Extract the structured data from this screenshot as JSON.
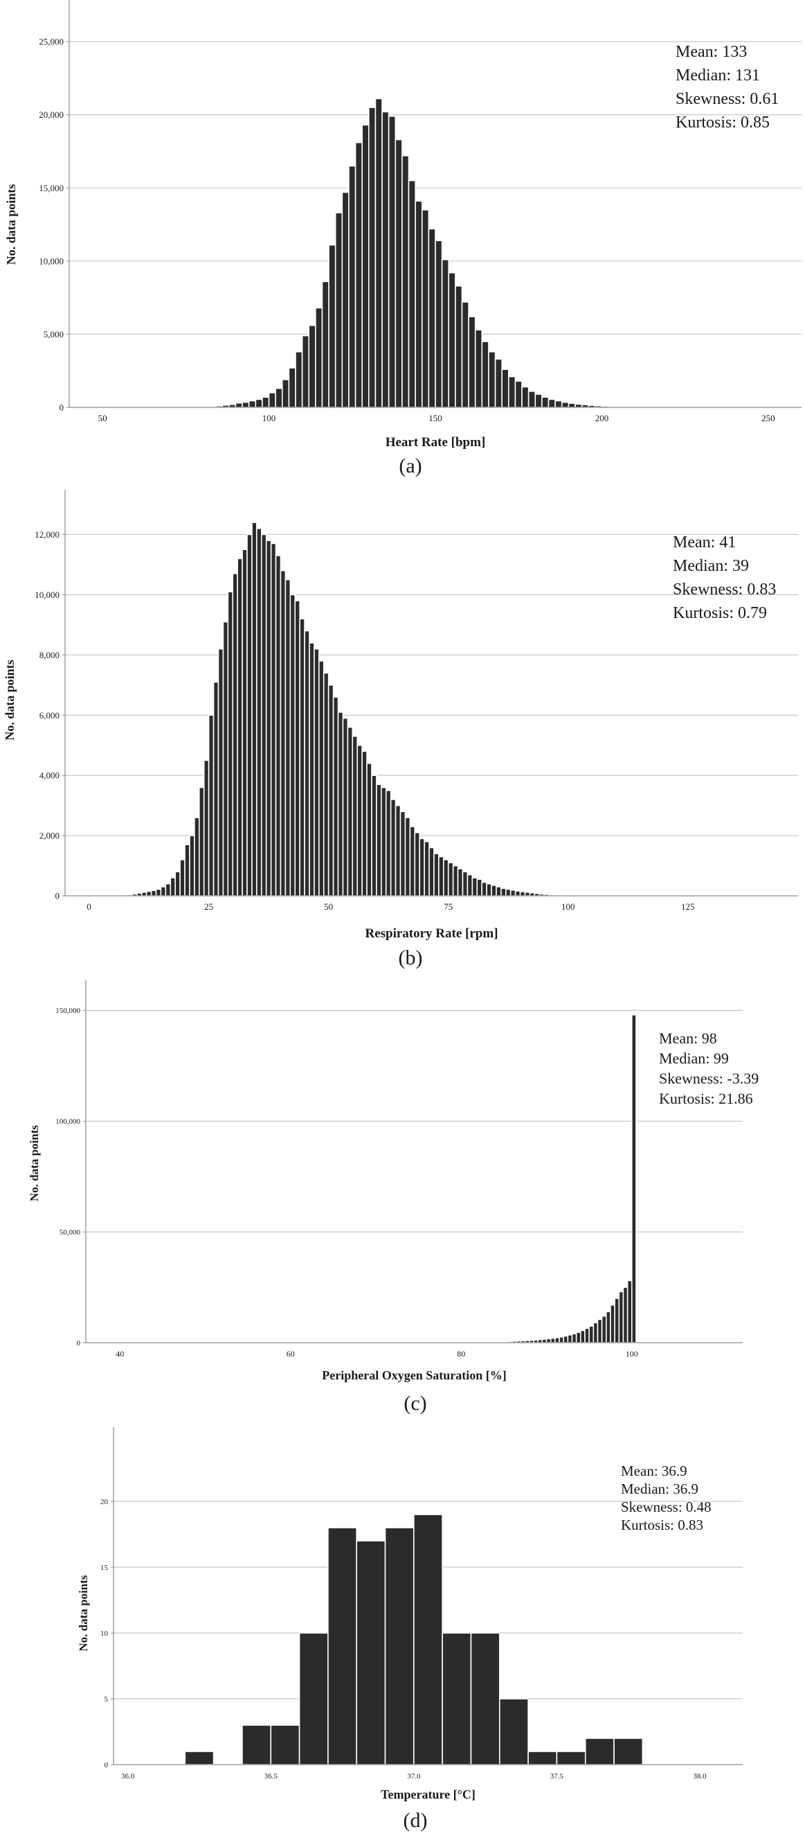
{
  "colors": {
    "bar": "#2b2b2b",
    "bar_edge": "#ffffff",
    "grid": "#c8c8c8",
    "axis": "#8a8a8a",
    "text": "#1a1a1a"
  },
  "chart_data": [
    {
      "type": "bar",
      "panel_label": "(a)",
      "xlabel": "Heart Rate [bpm]",
      "ylabel": "No. data points",
      "xlim": [
        40,
        260
      ],
      "ylim": [
        0,
        25000
      ],
      "xticks": [
        50,
        100,
        150,
        200,
        250
      ],
      "yticks": [
        0,
        5000,
        10000,
        15000,
        20000,
        25000
      ],
      "ytick_labels": [
        "0",
        "5,000",
        "10,000",
        "15,000",
        "20,000",
        "25,000"
      ],
      "grid": true,
      "stats": [
        "Mean: 133",
        "Median:  131",
        "Skewness: 0.61",
        "Kurtosis: 0.85"
      ],
      "bin_width": 2,
      "bins": [
        [
          80,
          50
        ],
        [
          82,
          70
        ],
        [
          84,
          100
        ],
        [
          86,
          150
        ],
        [
          88,
          200
        ],
        [
          90,
          300
        ],
        [
          92,
          350
        ],
        [
          94,
          450
        ],
        [
          96,
          550
        ],
        [
          98,
          700
        ],
        [
          100,
          1000
        ],
        [
          102,
          1300
        ],
        [
          104,
          1900
        ],
        [
          106,
          2700
        ],
        [
          108,
          3800
        ],
        [
          110,
          4900
        ],
        [
          112,
          5600
        ],
        [
          114,
          6800
        ],
        [
          116,
          8600
        ],
        [
          118,
          11100
        ],
        [
          120,
          13300
        ],
        [
          122,
          14700
        ],
        [
          124,
          16500
        ],
        [
          126,
          18100
        ],
        [
          128,
          19300
        ],
        [
          130,
          20500
        ],
        [
          132,
          21100
        ],
        [
          134,
          20200
        ],
        [
          136,
          19900
        ],
        [
          138,
          18300
        ],
        [
          140,
          17200
        ],
        [
          142,
          15500
        ],
        [
          144,
          14100
        ],
        [
          146,
          13500
        ],
        [
          148,
          12200
        ],
        [
          150,
          11400
        ],
        [
          152,
          10100
        ],
        [
          154,
          9200
        ],
        [
          156,
          8300
        ],
        [
          158,
          7200
        ],
        [
          160,
          6200
        ],
        [
          162,
          5300
        ],
        [
          164,
          4500
        ],
        [
          166,
          3800
        ],
        [
          168,
          3300
        ],
        [
          170,
          2600
        ],
        [
          172,
          2100
        ],
        [
          174,
          1800
        ],
        [
          176,
          1400
        ],
        [
          178,
          1100
        ],
        [
          180,
          900
        ],
        [
          182,
          700
        ],
        [
          184,
          550
        ],
        [
          186,
          450
        ],
        [
          188,
          350
        ],
        [
          190,
          280
        ],
        [
          192,
          220
        ],
        [
          194,
          180
        ],
        [
          196,
          140
        ],
        [
          198,
          110
        ],
        [
          200,
          90
        ],
        [
          202,
          70
        ],
        [
          204,
          50
        ],
        [
          206,
          40
        ],
        [
          208,
          30
        ],
        [
          210,
          25
        ],
        [
          212,
          20
        ],
        [
          214,
          15
        ],
        [
          216,
          12
        ],
        [
          218,
          10
        ]
      ]
    },
    {
      "type": "bar",
      "panel_label": "(b)",
      "xlabel": "Respiratory Rate [rpm]",
      "ylabel": "No. data points",
      "xlim": [
        -5,
        148
      ],
      "ylim": [
        0,
        13000
      ],
      "xticks": [
        0,
        25,
        50,
        75,
        100,
        125
      ],
      "yticks": [
        0,
        2000,
        4000,
        6000,
        8000,
        10000,
        12000
      ],
      "ytick_labels": [
        "0",
        "2,000",
        "4,000",
        "6,000",
        "8,000",
        "10,000",
        "12,000"
      ],
      "grid": true,
      "stats": [
        "Mean: 41",
        "Median: 39",
        "Skewness: 0.83",
        "Kurtosis: 0.79"
      ],
      "bin_width": 1,
      "bins": [
        [
          5,
          10
        ],
        [
          6,
          15
        ],
        [
          7,
          25
        ],
        [
          8,
          40
        ],
        [
          9,
          60
        ],
        [
          10,
          90
        ],
        [
          11,
          120
        ],
        [
          12,
          150
        ],
        [
          13,
          180
        ],
        [
          14,
          220
        ],
        [
          15,
          300
        ],
        [
          16,
          400
        ],
        [
          17,
          600
        ],
        [
          18,
          800
        ],
        [
          19,
          1200
        ],
        [
          20,
          1700
        ],
        [
          21,
          2000
        ],
        [
          22,
          2600
        ],
        [
          23,
          3600
        ],
        [
          24,
          4500
        ],
        [
          25,
          6000
        ],
        [
          26,
          7100
        ],
        [
          27,
          8200
        ],
        [
          28,
          9100
        ],
        [
          29,
          10100
        ],
        [
          30,
          10700
        ],
        [
          31,
          11200
        ],
        [
          32,
          11500
        ],
        [
          33,
          12000
        ],
        [
          34,
          12400
        ],
        [
          35,
          12200
        ],
        [
          36,
          12000
        ],
        [
          37,
          11800
        ],
        [
          38,
          11700
        ],
        [
          39,
          11300
        ],
        [
          40,
          10800
        ],
        [
          41,
          10500
        ],
        [
          42,
          10000
        ],
        [
          43,
          9800
        ],
        [
          44,
          9200
        ],
        [
          45,
          8800
        ],
        [
          46,
          8400
        ],
        [
          47,
          8200
        ],
        [
          48,
          7800
        ],
        [
          49,
          7400
        ],
        [
          50,
          7000
        ],
        [
          51,
          6600
        ],
        [
          52,
          6100
        ],
        [
          53,
          5900
        ],
        [
          54,
          5600
        ],
        [
          55,
          5300
        ],
        [
          56,
          5000
        ],
        [
          57,
          4800
        ],
        [
          58,
          4400
        ],
        [
          59,
          4000
        ],
        [
          60,
          3700
        ],
        [
          61,
          3600
        ],
        [
          62,
          3500
        ],
        [
          63,
          3200
        ],
        [
          64,
          3000
        ],
        [
          65,
          2800
        ],
        [
          66,
          2600
        ],
        [
          67,
          2300
        ],
        [
          68,
          2100
        ],
        [
          69,
          1900
        ],
        [
          70,
          1800
        ],
        [
          71,
          1600
        ],
        [
          72,
          1400
        ],
        [
          73,
          1300
        ],
        [
          74,
          1200
        ],
        [
          75,
          1100
        ],
        [
          76,
          1000
        ],
        [
          77,
          900
        ],
        [
          78,
          800
        ],
        [
          79,
          700
        ],
        [
          80,
          600
        ],
        [
          81,
          550
        ],
        [
          82,
          450
        ],
        [
          83,
          400
        ],
        [
          84,
          350
        ],
        [
          85,
          300
        ],
        [
          86,
          250
        ],
        [
          87,
          220
        ],
        [
          88,
          190
        ],
        [
          89,
          160
        ],
        [
          90,
          140
        ],
        [
          91,
          120
        ],
        [
          92,
          100
        ],
        [
          93,
          80
        ],
        [
          94,
          60
        ],
        [
          95,
          50
        ],
        [
          96,
          40
        ],
        [
          97,
          30
        ],
        [
          98,
          25
        ],
        [
          99,
          20
        ],
        [
          100,
          15
        ],
        [
          101,
          12
        ],
        [
          102,
          10
        ],
        [
          103,
          8
        ],
        [
          104,
          5
        ]
      ]
    },
    {
      "type": "bar",
      "panel_label": "(c)",
      "xlabel": "Peripheral Oxygen Saturation [%]",
      "ylabel": "No. data points",
      "xlim": [
        36,
        113
      ],
      "ylim": [
        0,
        162000
      ],
      "xticks": [
        40,
        60,
        80,
        100
      ],
      "yticks": [
        0,
        50000,
        100000,
        150000
      ],
      "ytick_labels": [
        "0",
        "50,000",
        "100,000",
        "150,000"
      ],
      "grid": true,
      "stats": [
        "Mean: 98",
        "Median:  99",
        "Skewness: -3.39",
        "Kurtosis: 21.86"
      ],
      "bin_width": 0.5,
      "bins": [
        [
          80,
          100
        ],
        [
          80.5,
          120
        ],
        [
          81,
          150
        ],
        [
          81.5,
          180
        ],
        [
          82,
          220
        ],
        [
          82.5,
          260
        ],
        [
          83,
          300
        ],
        [
          83.5,
          350
        ],
        [
          84,
          400
        ],
        [
          84.5,
          450
        ],
        [
          85,
          500
        ],
        [
          85.5,
          600
        ],
        [
          86,
          700
        ],
        [
          86.5,
          800
        ],
        [
          87,
          900
        ],
        [
          87.5,
          1000
        ],
        [
          88,
          1100
        ],
        [
          88.5,
          1200
        ],
        [
          89,
          1400
        ],
        [
          89.5,
          1600
        ],
        [
          90,
          1800
        ],
        [
          90.5,
          2000
        ],
        [
          91,
          2300
        ],
        [
          91.5,
          2600
        ],
        [
          92,
          3000
        ],
        [
          92.5,
          3500
        ],
        [
          93,
          4000
        ],
        [
          93.5,
          4700
        ],
        [
          94,
          5500
        ],
        [
          94.5,
          6500
        ],
        [
          95,
          7500
        ],
        [
          95.5,
          9000
        ],
        [
          96,
          10500
        ],
        [
          96.5,
          12000
        ],
        [
          97,
          14000
        ],
        [
          97.5,
          17000
        ],
        [
          98,
          20000
        ],
        [
          98.5,
          23000
        ],
        [
          99,
          25000
        ],
        [
          99.5,
          28000
        ],
        [
          100,
          148000
        ]
      ]
    },
    {
      "type": "bar",
      "panel_label": "(d)",
      "xlabel": "Temperature [°C]",
      "ylabel": "No. data points",
      "xlim": [
        35.95,
        38.15
      ],
      "ylim": [
        0,
        23
      ],
      "xticks": [
        36.0,
        36.5,
        37.0,
        37.5,
        38.0
      ],
      "xtick_labels": [
        "36.0",
        "36.5",
        "37.0",
        "37.5",
        "38.0"
      ],
      "yticks": [
        0,
        5,
        10,
        15,
        20
      ],
      "ytick_labels": [
        "0",
        "5",
        "10",
        "15",
        "20"
      ],
      "grid": true,
      "stats": [
        "Mean: 36.9",
        "Median:  36.9",
        "Skewness: 0.48",
        "Kurtosis: 0.83"
      ],
      "bin_width": 0.1,
      "bins": [
        [
          36.2,
          1
        ],
        [
          36.4,
          3
        ],
        [
          36.5,
          3
        ],
        [
          36.6,
          10
        ],
        [
          36.7,
          18
        ],
        [
          36.8,
          17
        ],
        [
          36.9,
          18
        ],
        [
          37.0,
          19
        ],
        [
          37.1,
          10
        ],
        [
          37.2,
          10
        ],
        [
          37.3,
          5
        ],
        [
          37.4,
          1
        ],
        [
          37.5,
          1
        ],
        [
          37.6,
          2
        ],
        [
          37.7,
          2
        ]
      ]
    }
  ]
}
